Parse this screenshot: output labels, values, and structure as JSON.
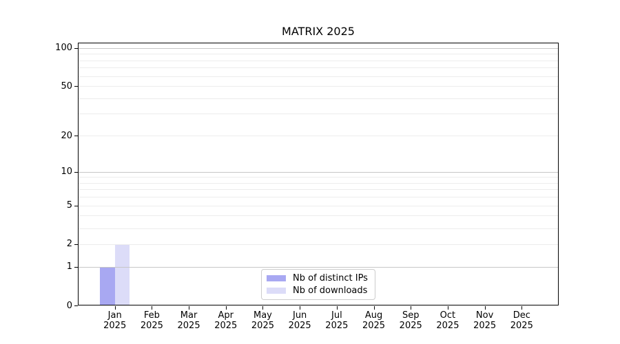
{
  "title": "MATRIX 2025",
  "chart_data": {
    "type": "bar",
    "title": "MATRIX 2025",
    "categories": [
      "Jan",
      "Feb",
      "Mar",
      "Apr",
      "May",
      "Jun",
      "Jul",
      "Aug",
      "Sep",
      "Oct",
      "Nov",
      "Dec"
    ],
    "year": "2025",
    "series": [
      {
        "name": "Nb of distinct IPs",
        "color": "#a8a8f2",
        "values": [
          1,
          0,
          0,
          0,
          0,
          0,
          0,
          0,
          0,
          0,
          0,
          0
        ]
      },
      {
        "name": "Nb of downloads",
        "color": "#dcdcf8",
        "values": [
          2,
          0,
          0,
          0,
          0,
          0,
          0,
          0,
          0,
          0,
          0,
          0
        ]
      }
    ],
    "xlabel": "",
    "ylabel": "",
    "scale": "log1p",
    "ylim": [
      0,
      110
    ],
    "yticks": [
      0,
      1,
      2,
      5,
      10,
      20,
      50,
      100
    ],
    "major_gridlines": [
      1,
      10,
      100
    ],
    "minor_gridlines": [
      2,
      3,
      4,
      5,
      6,
      7,
      8,
      9,
      20,
      30,
      40,
      50,
      60,
      70,
      80,
      90
    ],
    "grid": true,
    "legend_position": "lower center",
    "colors": {
      "major_grid": "#c6c6c6",
      "minor_grid": "#ececec",
      "spine": "#000000",
      "legend_border": "#cccccc",
      "text": "#000000",
      "background": "#ffffff"
    }
  }
}
